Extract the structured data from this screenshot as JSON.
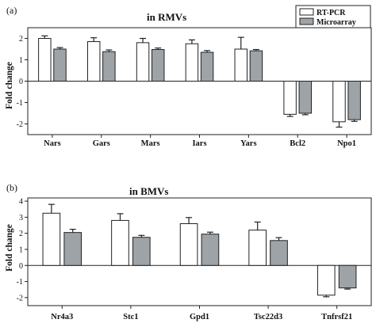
{
  "legend": {
    "items": [
      "RT-PCR",
      "Microarray"
    ]
  },
  "colors": {
    "rt_pcr": "#ffffff",
    "microarray": "#9da3a6",
    "stroke": "#222222"
  },
  "chart_data": [
    {
      "type": "bar",
      "panel_label": "(a)",
      "title": "in RMVs",
      "ylabel": "Fold change",
      "ylim": [
        -2.5,
        2.5
      ],
      "yticks": [
        -2,
        -1,
        0,
        1,
        2
      ],
      "categories": [
        "Nars",
        "Gars",
        "Mars",
        "Iars",
        "Yars",
        "Bcl2",
        "Npo1"
      ],
      "series": [
        {
          "name": "RT-PCR",
          "values": [
            2.0,
            1.85,
            1.8,
            1.75,
            1.5,
            -1.55,
            -1.9
          ],
          "errors": [
            0.12,
            0.18,
            0.2,
            0.18,
            0.55,
            0.1,
            0.25
          ]
        },
        {
          "name": "Microarray",
          "values": [
            1.5,
            1.38,
            1.48,
            1.35,
            1.42,
            -1.5,
            -1.8
          ],
          "errors": [
            0.07,
            0.08,
            0.07,
            0.08,
            0.06,
            0.07,
            0.08
          ]
        }
      ]
    },
    {
      "type": "bar",
      "panel_label": "(b)",
      "title": "in BMVs",
      "ylabel": "Fold change",
      "ylim": [
        -2.5,
        4.2
      ],
      "yticks": [
        -2,
        -1,
        0,
        1,
        2,
        3,
        4
      ],
      "categories": [
        "Nr4a3",
        "Stc1",
        "Gpd1",
        "Tsc22d3",
        "Tnfrsf21"
      ],
      "series": [
        {
          "name": "RT-PCR",
          "values": [
            3.25,
            2.8,
            2.6,
            2.2,
            -1.85
          ],
          "errors": [
            0.55,
            0.42,
            0.38,
            0.5,
            0.1
          ]
        },
        {
          "name": "Microarray",
          "values": [
            2.05,
            1.75,
            1.95,
            1.55,
            -1.4
          ],
          "errors": [
            0.2,
            0.12,
            0.12,
            0.18,
            0.07
          ]
        }
      ]
    }
  ]
}
